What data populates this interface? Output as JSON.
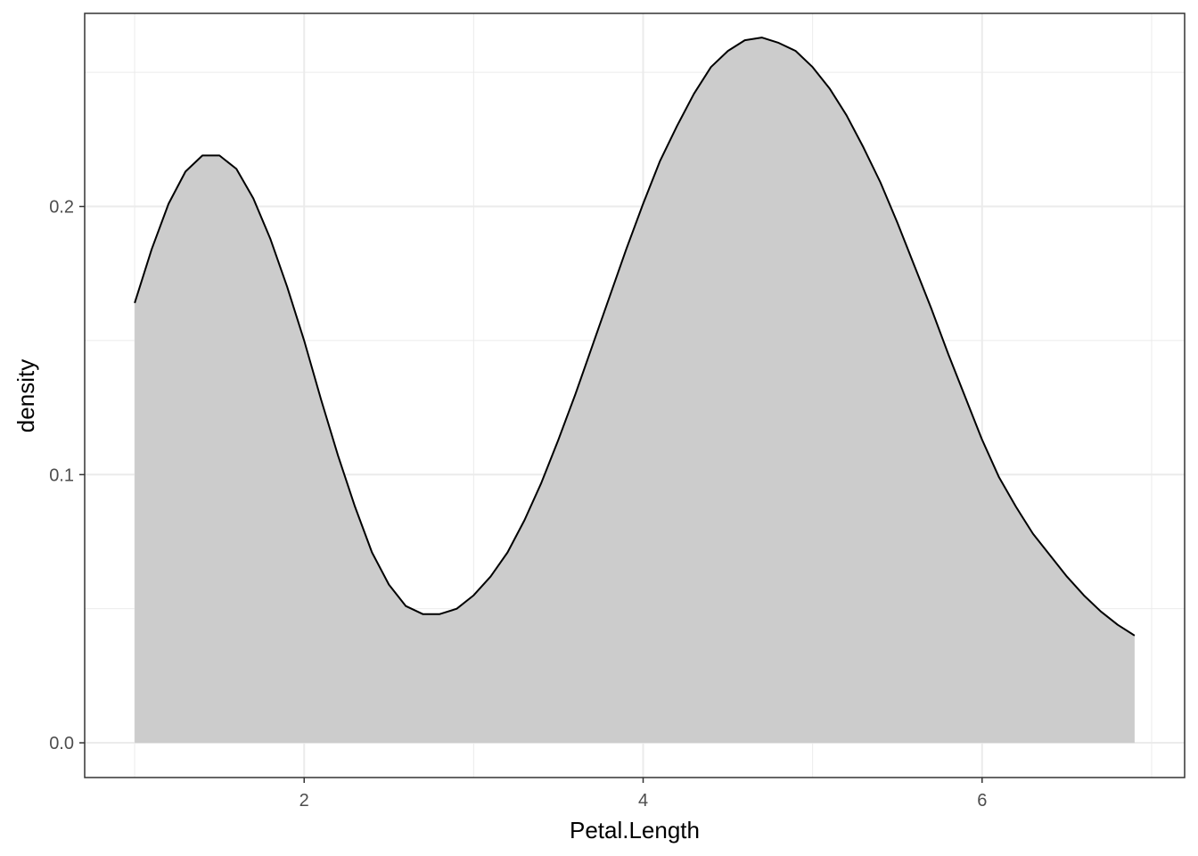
{
  "chart_data": {
    "type": "area",
    "title": "",
    "xlabel": "Petal.Length",
    "ylabel": "density",
    "xlim": [
      0.705,
      7.195
    ],
    "ylim": [
      -0.01295,
      0.272
    ],
    "x_ticks": [
      2,
      4,
      6
    ],
    "x_tick_labels": [
      "2",
      "4",
      "6"
    ],
    "x_minor_ticks": [
      1,
      3,
      5,
      7
    ],
    "y_ticks": [
      0.0,
      0.1,
      0.2
    ],
    "y_tick_labels": [
      "0.0",
      "0.1",
      "0.2"
    ],
    "y_minor_ticks": [
      0.05,
      0.15,
      0.25
    ],
    "grid": true,
    "legend": "none",
    "series": [
      {
        "x": [
          1.0,
          1.1,
          1.2,
          1.3,
          1.4,
          1.5,
          1.6,
          1.7,
          1.8,
          1.9,
          2.0,
          2.1,
          2.2,
          2.3,
          2.4,
          2.5,
          2.6,
          2.7,
          2.8,
          2.9,
          3.0,
          3.1,
          3.2,
          3.3,
          3.4,
          3.5,
          3.6,
          3.7,
          3.8,
          3.9,
          4.0,
          4.1,
          4.2,
          4.3,
          4.4,
          4.5,
          4.6,
          4.7,
          4.8,
          4.9,
          5.0,
          5.1,
          5.2,
          5.3,
          5.4,
          5.5,
          5.6,
          5.7,
          5.8,
          5.9,
          6.0,
          6.1,
          6.2,
          6.3,
          6.4,
          6.5,
          6.6,
          6.7,
          6.8,
          6.9
        ],
        "y": [
          0.164,
          0.184,
          0.201,
          0.213,
          0.219,
          0.219,
          0.214,
          0.203,
          0.188,
          0.17,
          0.15,
          0.128,
          0.107,
          0.088,
          0.071,
          0.059,
          0.051,
          0.048,
          0.048,
          0.05,
          0.055,
          0.062,
          0.071,
          0.083,
          0.097,
          0.113,
          0.13,
          0.148,
          0.166,
          0.184,
          0.201,
          0.217,
          0.23,
          0.242,
          0.252,
          0.258,
          0.262,
          0.263,
          0.261,
          0.258,
          0.252,
          0.244,
          0.234,
          0.222,
          0.209,
          0.194,
          0.178,
          0.162,
          0.145,
          0.129,
          0.113,
          0.099,
          0.088,
          0.078,
          0.07,
          0.062,
          0.055,
          0.049,
          0.044,
          0.04
        ]
      }
    ],
    "fill_color": "#cccccc",
    "line_color": "#000000",
    "grid_color": "#ebebeb",
    "panel_border_color": "#333333"
  }
}
